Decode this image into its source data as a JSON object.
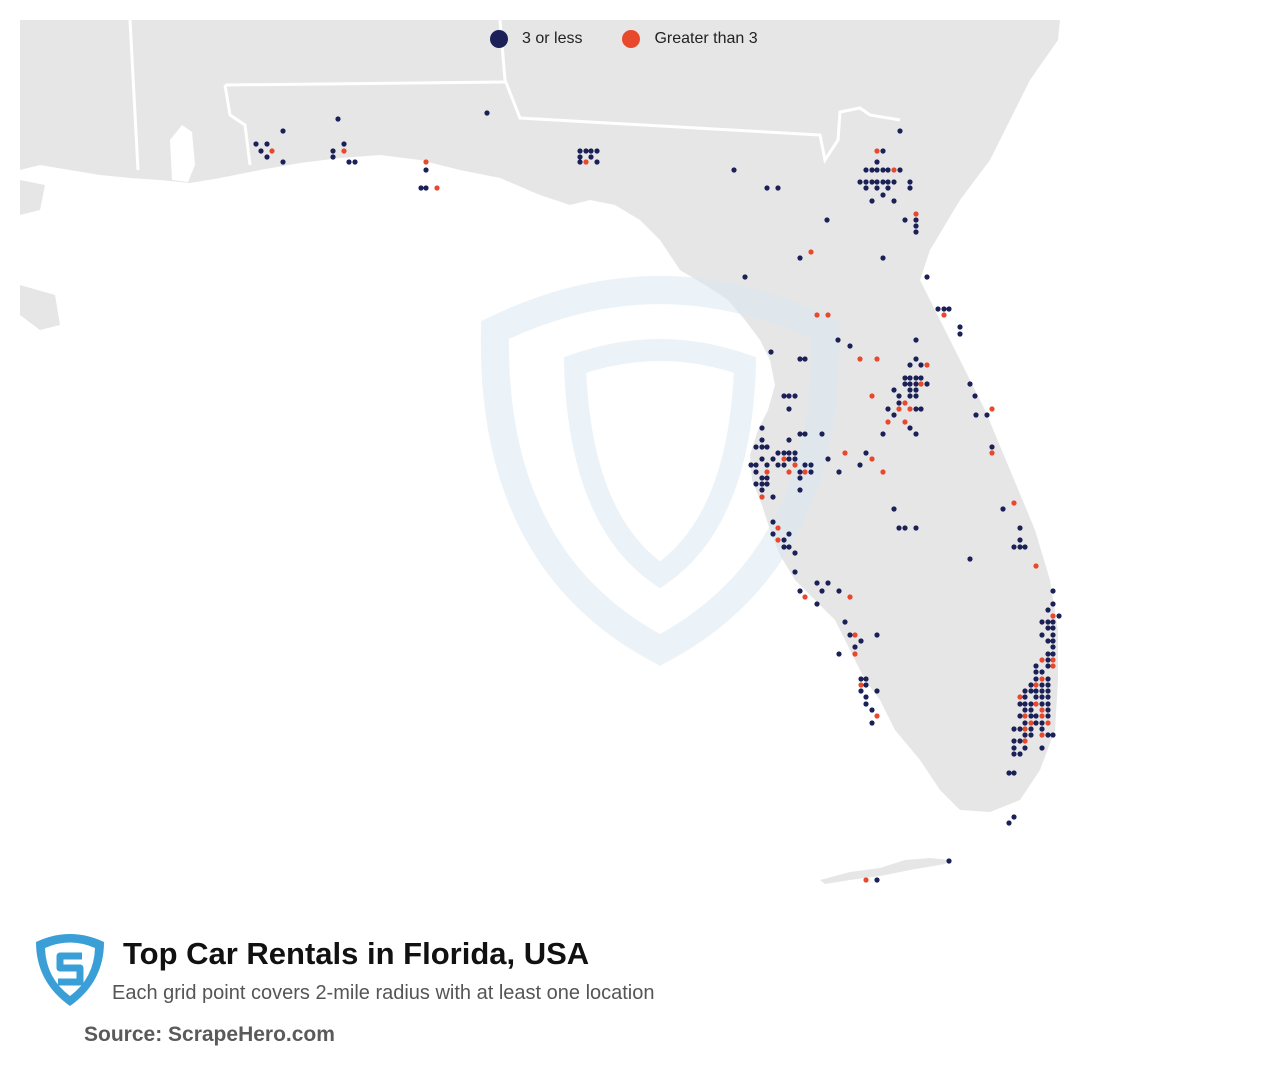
{
  "legend": {
    "items": [
      {
        "label": "3 or less",
        "color": "#1b2157"
      },
      {
        "label": "Greater than 3",
        "color": "#e8482b"
      }
    ]
  },
  "colors": {
    "land": "#e6e6e6",
    "water": "#ffffff",
    "state_border": "#ffffff",
    "low": "#1b2157",
    "high": "#e8482b",
    "logo": "#3a9fd6"
  },
  "footer": {
    "title": "Top Car Rentals in Florida, USA",
    "subtitle": "Each grid point covers 2-mile radius with at least one location",
    "source": "Source: ScrapeHero.com"
  },
  "icons": {
    "logo": "scrapehero-shield-logo",
    "watermark": "scrapehero-shield-watermark"
  }
}
